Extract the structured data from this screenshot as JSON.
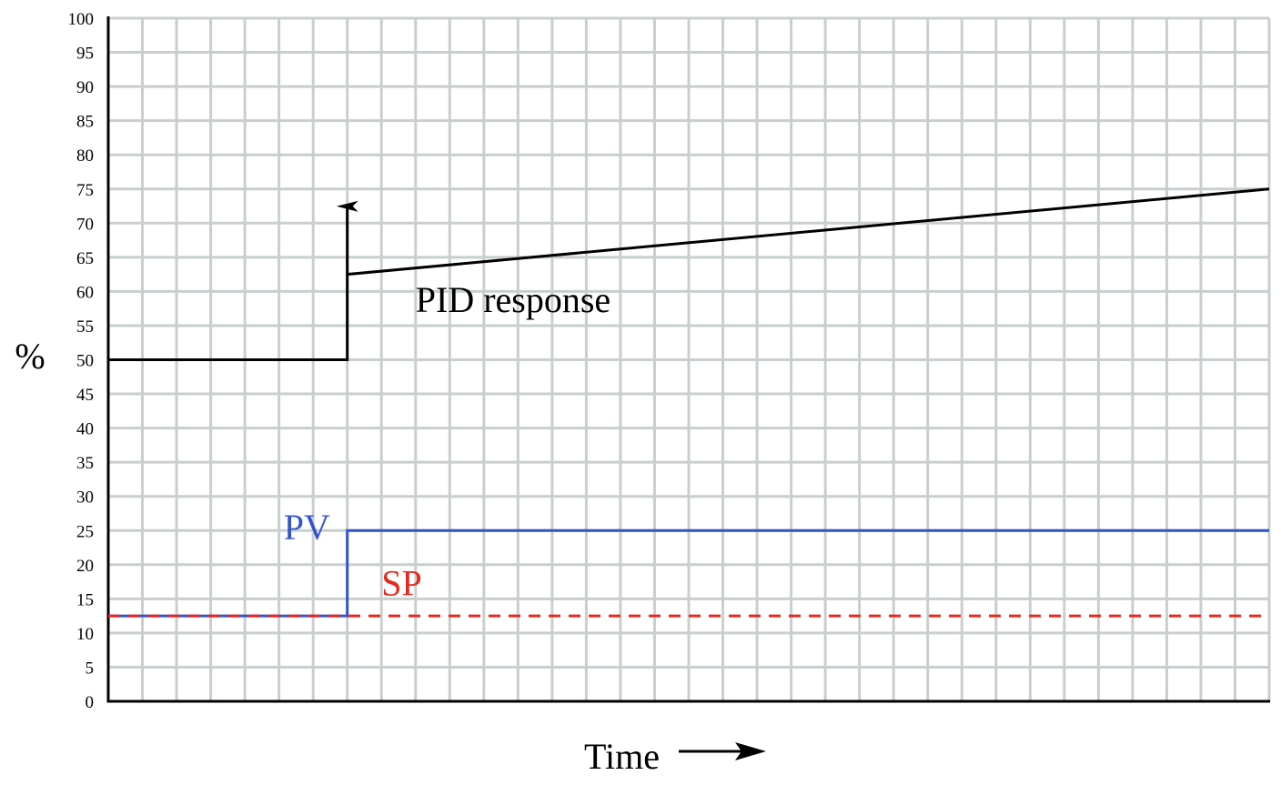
{
  "chart_data": {
    "type": "line",
    "title": "",
    "xlabel": "Time",
    "ylabel": "%",
    "xlim": [
      0,
      34
    ],
    "ylim": [
      0,
      100
    ],
    "y_ticks": [
      0,
      5,
      10,
      15,
      20,
      25,
      30,
      35,
      40,
      45,
      50,
      55,
      60,
      65,
      70,
      75,
      80,
      85,
      90,
      95,
      100
    ],
    "grid": true,
    "x_tick_labels": false,
    "series": [
      {
        "name": "PID response",
        "color": "#000000",
        "style": "solid",
        "points": [
          [
            0,
            50
          ],
          [
            7,
            50
          ],
          [
            7,
            62.5
          ],
          [
            34,
            75
          ]
        ]
      },
      {
        "name": "PV",
        "color": "#3355cc",
        "style": "solid",
        "points": [
          [
            0,
            12.5
          ],
          [
            7,
            12.5
          ],
          [
            7,
            25
          ],
          [
            34,
            25
          ]
        ]
      },
      {
        "name": "SP",
        "color": "#e8281e",
        "style": "dashed",
        "points": [
          [
            0,
            12.5
          ],
          [
            34,
            12.5
          ]
        ]
      }
    ],
    "annotations": [
      {
        "text": "PID response",
        "color": "#000000",
        "x": 9,
        "y": 57,
        "anchor": "start"
      },
      {
        "text": "PV",
        "color": "#3355cc",
        "x": 6.5,
        "y": 23.7,
        "anchor": "end"
      },
      {
        "text": "SP",
        "color": "#e8281e",
        "x": 8,
        "y": 15.5,
        "anchor": "start"
      }
    ],
    "arrows": [
      {
        "name": "pid-step-arrow",
        "color": "#000000",
        "from": [
          7,
          62.5
        ],
        "to": [
          7,
          73
        ]
      }
    ]
  },
  "colors": {
    "grid": "#c8cfcc",
    "axis": "#000000",
    "background": "#ffffff"
  },
  "xlabel_arrow_icon": "right-arrow-icon"
}
